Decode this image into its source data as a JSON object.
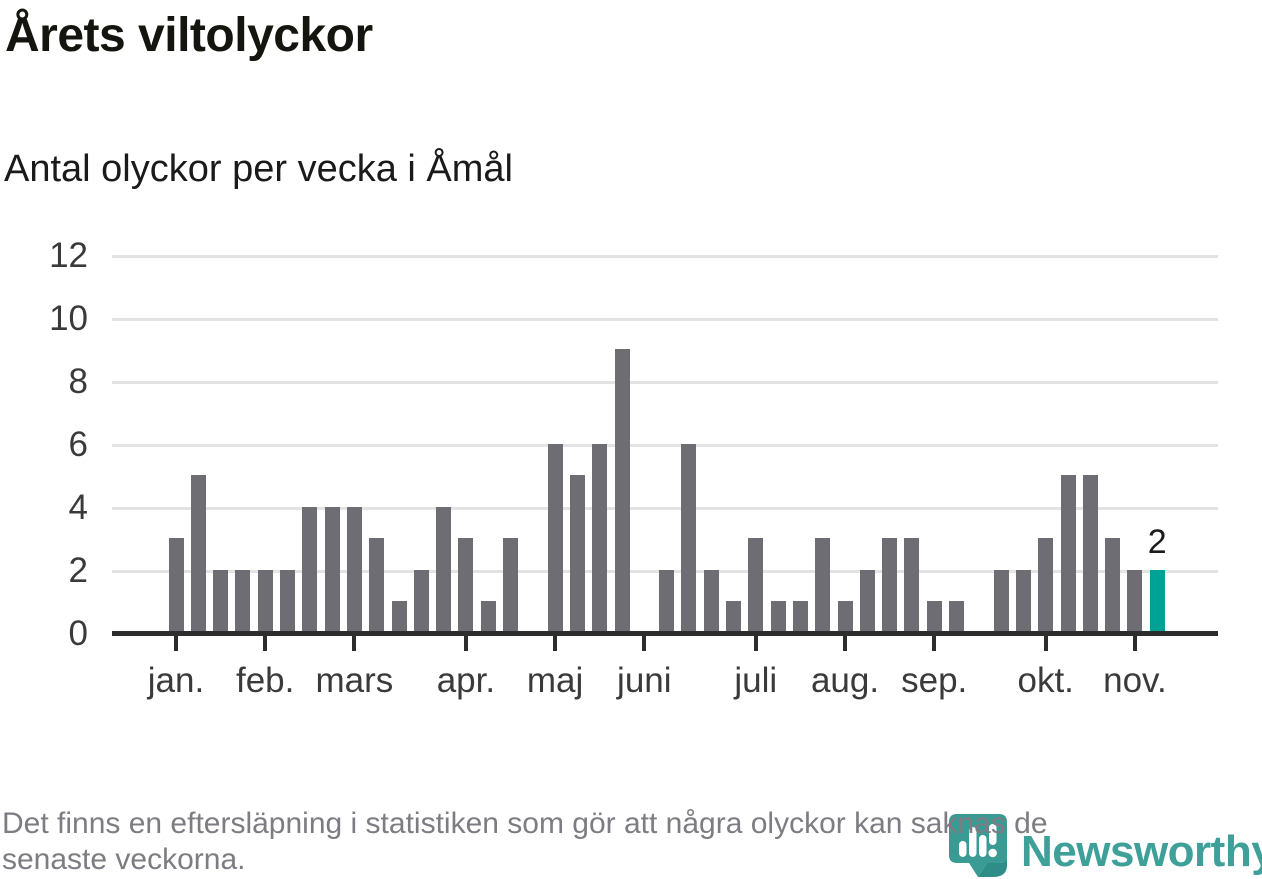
{
  "chart_data": {
    "type": "bar",
    "title": "Årets viltolyckor",
    "subtitle": "Antal olyckor per vecka i Åmål",
    "x_unit": "vecka",
    "values": [
      3,
      5,
      2,
      2,
      2,
      2,
      4,
      4,
      4,
      3,
      1,
      2,
      4,
      3,
      1,
      3,
      0,
      6,
      5,
      6,
      9,
      0,
      2,
      6,
      2,
      1,
      3,
      1,
      1,
      3,
      1,
      2,
      3,
      3,
      1,
      1,
      0,
      2,
      2,
      3,
      5,
      5,
      3,
      2,
      2
    ],
    "yticks": [
      0,
      2,
      4,
      6,
      8,
      10,
      12
    ],
    "ylim": [
      0,
      12
    ],
    "grid": "horizontal",
    "month_ticks": [
      {
        "label": "jan.",
        "index": 0
      },
      {
        "label": "feb.",
        "index": 4
      },
      {
        "label": "mars",
        "index": 8
      },
      {
        "label": "apr.",
        "index": 13
      },
      {
        "label": "maj",
        "index": 17
      },
      {
        "label": "juni",
        "index": 21
      },
      {
        "label": "juli",
        "index": 26
      },
      {
        "label": "aug.",
        "index": 30
      },
      {
        "label": "sep.",
        "index": 34
      },
      {
        "label": "okt.",
        "index": 39
      },
      {
        "label": "nov.",
        "index": 43
      }
    ],
    "highlight_last_bar": true,
    "last_value_label": "2",
    "colors": {
      "bar": "#6e6d74",
      "highlight": "#00a296",
      "gridline": "#e3e3e3",
      "axis": "#2d2d2d",
      "axis_label": "#3a3a3a",
      "value_label": "#1c1c1c"
    }
  },
  "footer": {
    "lines": [
      "Det finns en eftersläpning i statistiken som gör att några olyckor kan saknas de",
      "senaste veckorna."
    ]
  },
  "logo": {
    "text": "Newsworthy",
    "color": "#3f9f99",
    "icon": "newsworthy-speech-bubble-barchart-icon"
  }
}
